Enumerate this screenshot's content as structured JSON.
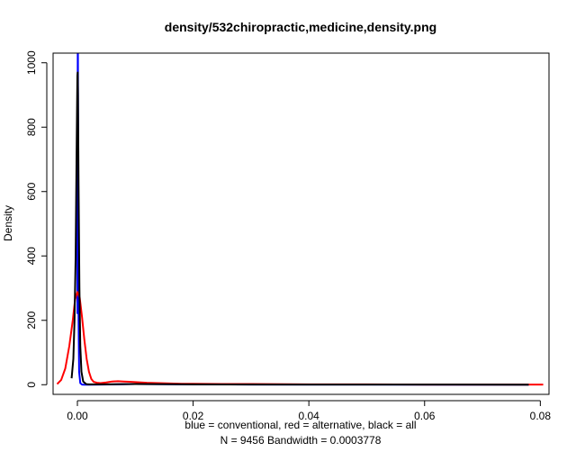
{
  "chart_data": {
    "type": "line",
    "title": "density/532chiropractic,medicine,density.png",
    "ylabel": "Density",
    "xlabel_line1": "blue = conventional, red = alternative, black = all",
    "xlabel_line2": "N = 9456   Bandwidth = 0.0003778",
    "xlim": [
      -0.0042,
      0.0815
    ],
    "ylim": [
      -30,
      1030
    ],
    "x_ticks": [
      0.0,
      0.02,
      0.04,
      0.06,
      0.08
    ],
    "x_tick_labels": [
      "0.00",
      "0.02",
      "0.04",
      "0.06",
      "0.08"
    ],
    "y_ticks": [
      0,
      200,
      400,
      600,
      800,
      1000
    ],
    "y_tick_labels": [
      "0",
      "200",
      "400",
      "600",
      "800",
      "1000"
    ],
    "series": [
      {
        "color": "#0000ff",
        "x": [
          0.0,
          3e-05,
          6e-05,
          9e-05,
          0.00012,
          0.00016,
          0.0002,
          0.0003,
          0.0005,
          0.0008,
          0.0012,
          0.002,
          0.004,
          0.01,
          0.02,
          0.03,
          0.05,
          0.07,
          0.078
        ],
        "y": [
          220,
          800,
          1030,
          1030,
          800,
          400,
          200,
          40,
          5,
          0.5,
          0.2,
          0.2,
          0.5,
          2,
          1,
          0.5,
          0.3,
          0.2,
          0.2
        ]
      },
      {
        "color": "#ff0000",
        "x": [
          -0.0035,
          -0.0028,
          -0.0021,
          -0.0014,
          -0.0008,
          -0.0004,
          0.0,
          0.0004,
          0.0008,
          0.0012,
          0.0016,
          0.002,
          0.0024,
          0.0028,
          0.0034,
          0.004,
          0.005,
          0.006,
          0.007,
          0.008,
          0.009,
          0.01,
          0.012,
          0.014,
          0.016,
          0.018,
          0.02,
          0.025,
          0.03,
          0.04,
          0.05,
          0.06,
          0.07,
          0.08,
          0.0805
        ],
        "y": [
          2,
          15,
          50,
          120,
          200,
          265,
          288,
          270,
          210,
          140,
          80,
          40,
          18,
          9,
          6,
          5,
          7,
          10,
          11,
          10,
          9,
          8,
          6,
          5,
          4,
          3,
          3,
          2,
          2,
          1,
          1,
          0.5,
          0.5,
          0.3,
          0.3
        ]
      },
      {
        "color": "#000000",
        "x": [
          -0.001,
          -0.0007,
          -0.0005,
          -0.0003,
          -0.00015,
          0.0,
          5e-05,
          0.0001,
          0.0002,
          0.00035,
          0.0005,
          0.0007,
          0.001,
          0.0015,
          0.002,
          0.004,
          0.01,
          0.02,
          0.04,
          0.06,
          0.078
        ],
        "y": [
          20,
          80,
          200,
          400,
          700,
          960,
          970,
          900,
          620,
          300,
          120,
          40,
          10,
          2,
          1,
          1,
          2,
          1,
          0.5,
          0.3,
          0.2
        ]
      }
    ]
  }
}
